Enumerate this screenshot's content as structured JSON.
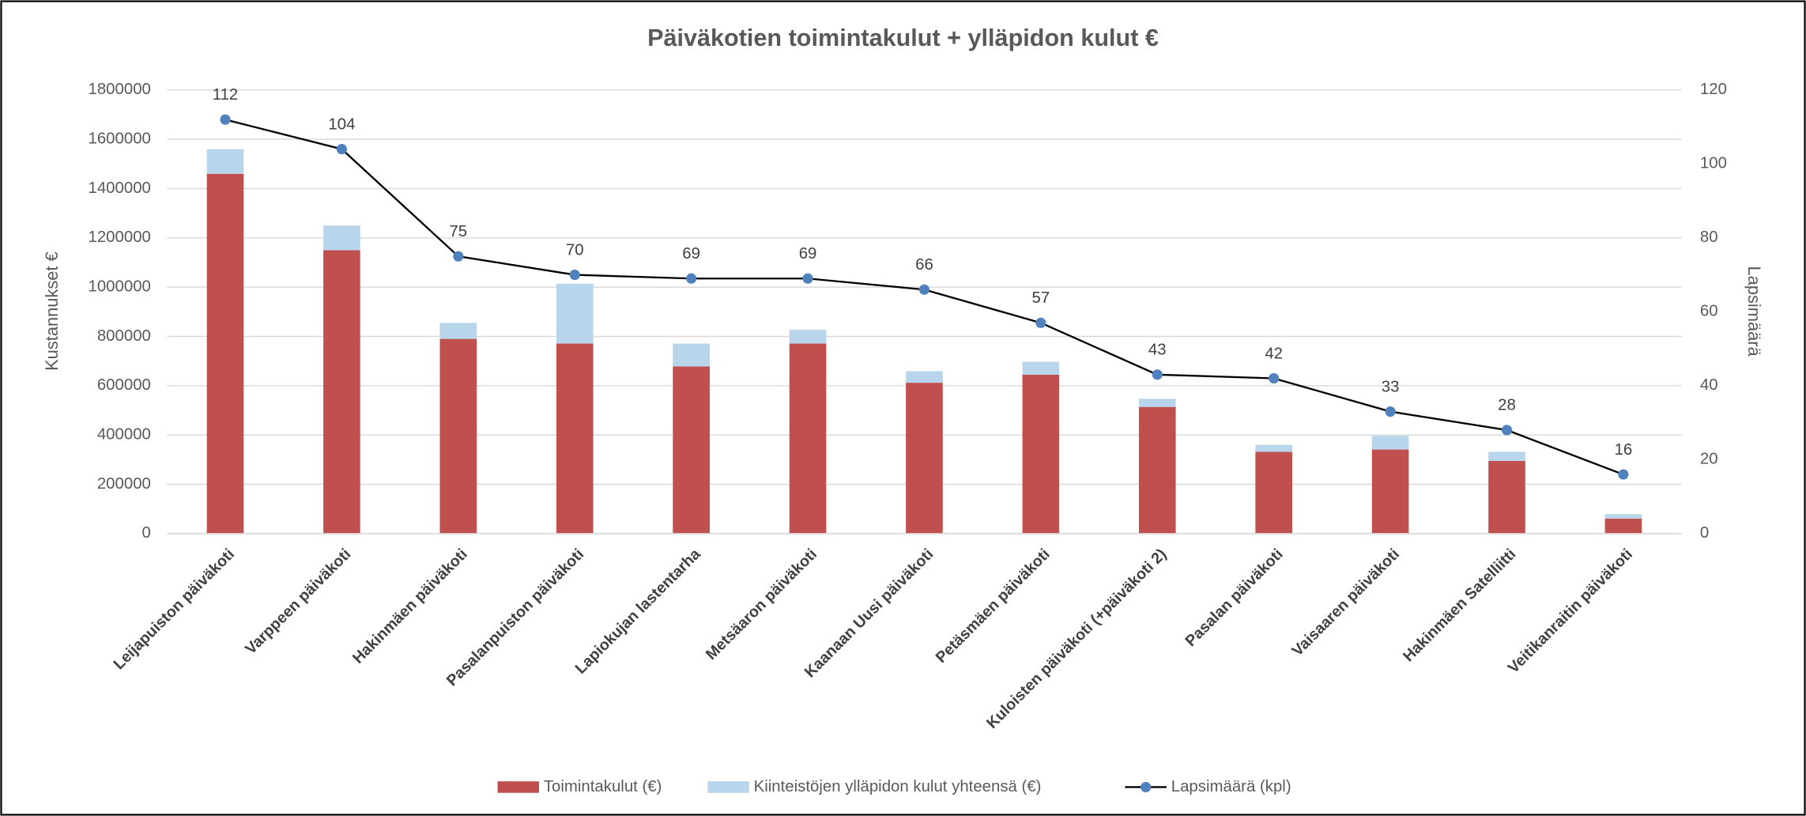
{
  "chart_data": {
    "type": "bar",
    "stacked": true,
    "title": "Päiväkotien toimintakulut + ylläpidon kulut €",
    "ylabel": "Kustannukset €",
    "y2label": "Lapsimäärä",
    "categories": [
      "Leijapuiston päiväkoti",
      "Varppeen päiväkoti",
      "Hakinmäen päiväkoti",
      "Pasalanpuiston päiväkoti",
      "Lapiokujan lastentarha",
      "Metsäaron päiväkoti",
      "Kaanaan Uusi päiväkoti",
      "Petäsmäen päiväkoti",
      "Kuloisten päiväkoti (+päiväkoti 2)",
      "Pasalan päiväkoti",
      "Vaisaaren päiväkoti",
      "Hakinmäen Satelliitti",
      "Veitikanraitin päiväkoti"
    ],
    "series": [
      {
        "name": "Toimintakulut (€)",
        "color": "#c0504d",
        "values": [
          1460000,
          1150000,
          790000,
          771000,
          678000,
          771000,
          612000,
          645000,
          514000,
          332000,
          341000,
          295000,
          61000
        ]
      },
      {
        "name": "Kiinteistöjen ylläpidon kulut yhteensä (€)",
        "color": "#b8d5ec",
        "values": [
          100000,
          100000,
          65000,
          243000,
          93000,
          56000,
          47000,
          52000,
          33000,
          28000,
          56000,
          37000,
          18000
        ]
      },
      {
        "name": "Lapsimäärä (kpl)",
        "color": "#000000",
        "marker_color": "#4f81bd",
        "type": "line",
        "axis": "y2",
        "values": [
          112,
          104,
          75,
          70,
          69,
          69,
          66,
          57,
          43,
          42,
          33,
          28,
          16
        ]
      }
    ],
    "ylim": [
      0,
      1800000
    ],
    "yticks": [
      0,
      200000,
      400000,
      600000,
      800000,
      1000000,
      1200000,
      1400000,
      1600000,
      1800000
    ],
    "y2lim": [
      0,
      120
    ],
    "y2ticks": [
      0,
      20,
      40,
      60,
      80,
      100,
      120
    ],
    "grid": true,
    "legend": "bottom"
  }
}
